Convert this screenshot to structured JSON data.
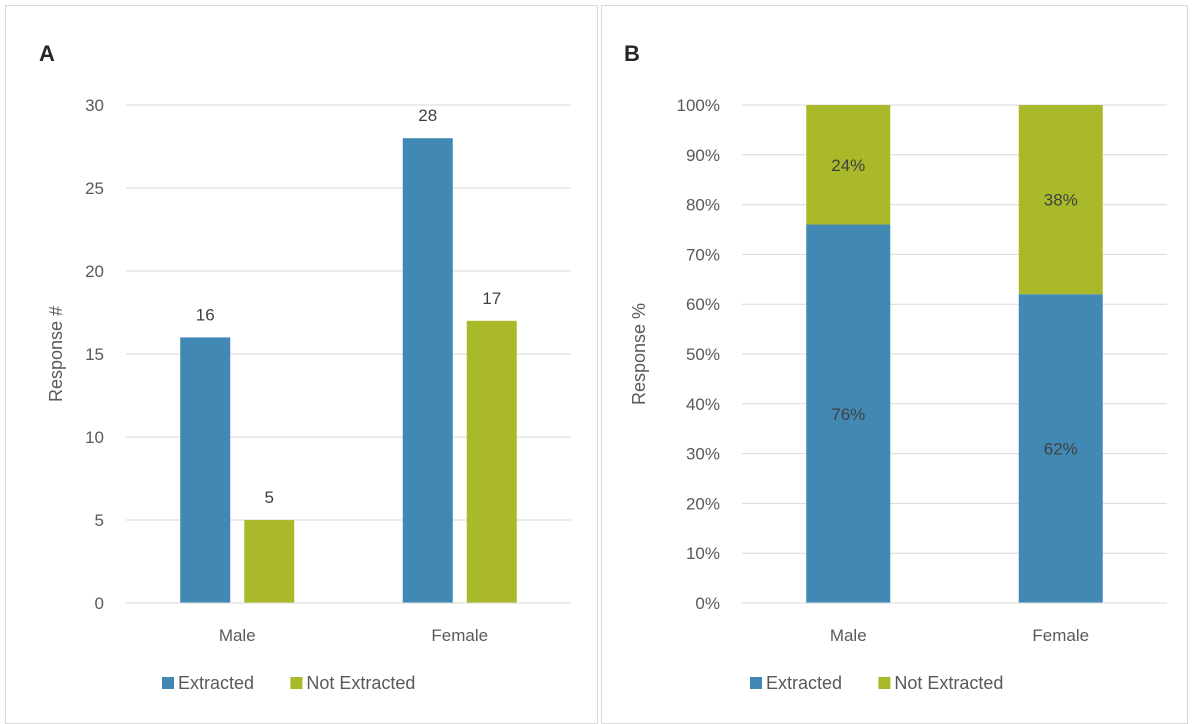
{
  "colors": {
    "extracted": "#4189b4",
    "not_extracted": "#a9b929",
    "grid": "#d9d9d9",
    "text": "#404040",
    "label_light": "#595959"
  },
  "chart_data": [
    {
      "panel_label": "A",
      "type": "bar",
      "categories": [
        "Male",
        "Female"
      ],
      "series": [
        {
          "name": "Extracted",
          "values": [
            16,
            28
          ]
        },
        {
          "name": "Not Extracted",
          "values": [
            5,
            17
          ]
        }
      ],
      "ylabel": "Response #",
      "xlabel": "",
      "ylim": [
        0,
        30
      ],
      "yticks": [
        "0",
        "5",
        "10",
        "15",
        "20",
        "25",
        "30"
      ],
      "data_labels": [
        [
          "16",
          "28"
        ],
        [
          "5",
          "17"
        ]
      ],
      "grid": true,
      "legend": "bottom"
    },
    {
      "panel_label": "B",
      "type": "bar",
      "stacked": true,
      "categories": [
        "Male",
        "Female"
      ],
      "series": [
        {
          "name": "Extracted",
          "values": [
            76,
            62
          ]
        },
        {
          "name": "Not Extracted",
          "values": [
            24,
            38
          ]
        }
      ],
      "ylabel": "Response %",
      "xlabel": "",
      "ylim": [
        0,
        100
      ],
      "yticks": [
        "0%",
        "10%",
        "20%",
        "30%",
        "40%",
        "50%",
        "60%",
        "70%",
        "80%",
        "90%",
        "100%"
      ],
      "data_labels": [
        [
          "76%",
          "62%"
        ],
        [
          "24%",
          "38%"
        ]
      ],
      "grid": true,
      "legend": "bottom"
    }
  ]
}
